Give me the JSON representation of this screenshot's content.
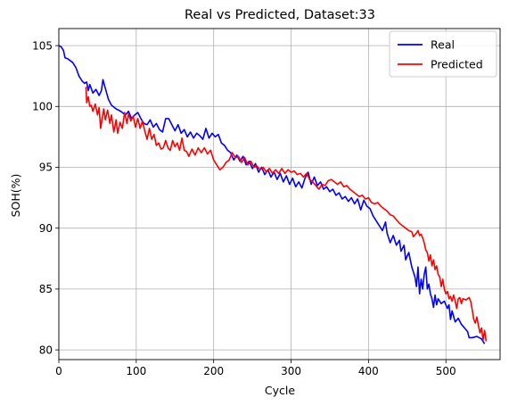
{
  "chart_data": {
    "type": "line",
    "title": "Real vs Predicted, Dataset:33",
    "xlabel": "Cycle",
    "ylabel": "SOH(%)",
    "xlim": [
      0,
      570
    ],
    "ylim": [
      79.2,
      106.4
    ],
    "xticks": [
      0,
      100,
      200,
      300,
      400,
      500
    ],
    "yticks": [
      80,
      85,
      90,
      95,
      100,
      105
    ],
    "grid": true,
    "legend_position": "top-right",
    "series": [
      {
        "name": "Real",
        "color": "#0000ff",
        "points": [
          [
            0,
            105.0
          ],
          [
            3,
            104.9
          ],
          [
            6,
            104.6
          ],
          [
            8,
            104.0
          ],
          [
            12,
            103.9
          ],
          [
            18,
            103.6
          ],
          [
            22,
            103.2
          ],
          [
            26,
            102.5
          ],
          [
            30,
            102.1
          ],
          [
            33,
            101.9
          ],
          [
            36,
            102.0
          ],
          [
            38,
            101.3
          ],
          [
            40,
            101.8
          ],
          [
            44,
            101.1
          ],
          [
            48,
            101.4
          ],
          [
            52,
            100.9
          ],
          [
            55,
            101.3
          ],
          [
            57,
            102.2
          ],
          [
            60,
            101.5
          ],
          [
            64,
            100.6
          ],
          [
            68,
            100.1
          ],
          [
            74,
            99.8
          ],
          [
            80,
            99.6
          ],
          [
            86,
            99.3
          ],
          [
            90,
            99.6
          ],
          [
            94,
            99.0
          ],
          [
            98,
            99.3
          ],
          [
            102,
            99.5
          ],
          [
            106,
            99.0
          ],
          [
            110,
            98.6
          ],
          [
            114,
            98.5
          ],
          [
            118,
            98.9
          ],
          [
            122,
            98.3
          ],
          [
            126,
            98.6
          ],
          [
            130,
            98.1
          ],
          [
            134,
            97.9
          ],
          [
            138,
            99.0
          ],
          [
            142,
            99.0
          ],
          [
            146,
            98.5
          ],
          [
            150,
            98.0
          ],
          [
            154,
            98.5
          ],
          [
            158,
            97.8
          ],
          [
            162,
            98.1
          ],
          [
            166,
            97.5
          ],
          [
            170,
            97.9
          ],
          [
            174,
            97.4
          ],
          [
            178,
            97.8
          ],
          [
            182,
            97.6
          ],
          [
            186,
            97.3
          ],
          [
            190,
            98.2
          ],
          [
            194,
            97.4
          ],
          [
            198,
            97.8
          ],
          [
            202,
            97.5
          ],
          [
            206,
            97.7
          ],
          [
            210,
            97.0
          ],
          [
            214,
            96.8
          ],
          [
            218,
            96.4
          ],
          [
            222,
            96.2
          ],
          [
            226,
            95.6
          ],
          [
            230,
            96.0
          ],
          [
            234,
            95.5
          ],
          [
            238,
            95.9
          ],
          [
            242,
            95.2
          ],
          [
            246,
            95.5
          ],
          [
            250,
            94.9
          ],
          [
            254,
            95.3
          ],
          [
            258,
            94.6
          ],
          [
            262,
            95.0
          ],
          [
            266,
            94.4
          ],
          [
            270,
            94.8
          ],
          [
            274,
            94.2
          ],
          [
            278,
            94.6
          ],
          [
            282,
            94.0
          ],
          [
            286,
            94.5
          ],
          [
            290,
            93.8
          ],
          [
            294,
            94.3
          ],
          [
            298,
            93.6
          ],
          [
            302,
            94.1
          ],
          [
            306,
            93.4
          ],
          [
            310,
            93.8
          ],
          [
            314,
            93.3
          ],
          [
            318,
            94.1
          ],
          [
            322,
            94.6
          ],
          [
            326,
            93.6
          ],
          [
            330,
            94.2
          ],
          [
            334,
            93.5
          ],
          [
            338,
            93.8
          ],
          [
            342,
            93.2
          ],
          [
            346,
            93.4
          ],
          [
            350,
            93.0
          ],
          [
            354,
            93.2
          ],
          [
            358,
            92.7
          ],
          [
            362,
            92.9
          ],
          [
            366,
            92.4
          ],
          [
            370,
            92.6
          ],
          [
            374,
            92.2
          ],
          [
            378,
            92.5
          ],
          [
            382,
            92.0
          ],
          [
            386,
            92.4
          ],
          [
            390,
            91.5
          ],
          [
            394,
            92.3
          ],
          [
            398,
            91.8
          ],
          [
            402,
            91.6
          ],
          [
            406,
            91.0
          ],
          [
            410,
            90.6
          ],
          [
            414,
            90.2
          ],
          [
            418,
            89.8
          ],
          [
            422,
            90.5
          ],
          [
            424,
            89.6
          ],
          [
            428,
            88.8
          ],
          [
            432,
            89.4
          ],
          [
            436,
            88.6
          ],
          [
            440,
            89.0
          ],
          [
            442,
            88.1
          ],
          [
            446,
            88.6
          ],
          [
            448,
            87.4
          ],
          [
            452,
            88.0
          ],
          [
            456,
            86.8
          ],
          [
            460,
            86.0
          ],
          [
            462,
            85.2
          ],
          [
            464,
            86.8
          ],
          [
            466,
            84.6
          ],
          [
            468,
            85.8
          ],
          [
            470,
            85.0
          ],
          [
            472,
            86.2
          ],
          [
            474,
            86.8
          ],
          [
            476,
            85.0
          ],
          [
            478,
            85.4
          ],
          [
            480,
            84.6
          ],
          [
            482,
            84.2
          ],
          [
            484,
            83.5
          ],
          [
            486,
            84.5
          ],
          [
            488,
            83.7
          ],
          [
            490,
            84.2
          ],
          [
            494,
            83.8
          ],
          [
            498,
            84.0
          ],
          [
            502,
            83.4
          ],
          [
            504,
            83.7
          ],
          [
            506,
            82.5
          ],
          [
            508,
            83.2
          ],
          [
            512,
            82.3
          ],
          [
            516,
            82.6
          ],
          [
            520,
            82.1
          ],
          [
            524,
            81.8
          ],
          [
            528,
            81.5
          ],
          [
            530,
            81.0
          ],
          [
            534,
            81.0
          ],
          [
            540,
            81.1
          ],
          [
            546,
            80.9
          ],
          [
            550,
            80.5
          ]
        ]
      },
      {
        "name": "Predicted",
        "color": "#ff0000",
        "points": [
          [
            35,
            101.6
          ],
          [
            36,
            100.3
          ],
          [
            38,
            100.8
          ],
          [
            40,
            100.0
          ],
          [
            42,
            100.1
          ],
          [
            44,
            99.6
          ],
          [
            47,
            100.2
          ],
          [
            50,
            99.3
          ],
          [
            52,
            99.9
          ],
          [
            54,
            98.2
          ],
          [
            56,
            99.0
          ],
          [
            58,
            99.8
          ],
          [
            60,
            98.9
          ],
          [
            63,
            99.7
          ],
          [
            66,
            98.6
          ],
          [
            68,
            99.3
          ],
          [
            71,
            97.9
          ],
          [
            74,
            98.9
          ],
          [
            76,
            97.8
          ],
          [
            79,
            98.7
          ],
          [
            82,
            98.2
          ],
          [
            85,
            99.5
          ],
          [
            88,
            98.6
          ],
          [
            90,
            99.4
          ],
          [
            93,
            98.8
          ],
          [
            96,
            99.2
          ],
          [
            99,
            98.3
          ],
          [
            102,
            99.0
          ],
          [
            105,
            98.2
          ],
          [
            108,
            98.8
          ],
          [
            111,
            98.0
          ],
          [
            114,
            97.3
          ],
          [
            117,
            98.2
          ],
          [
            120,
            97.3
          ],
          [
            123,
            97.7
          ],
          [
            126,
            96.8
          ],
          [
            129,
            97.0
          ],
          [
            132,
            96.5
          ],
          [
            135,
            96.6
          ],
          [
            138,
            97.2
          ],
          [
            141,
            96.6
          ],
          [
            144,
            96.4
          ],
          [
            147,
            97.2
          ],
          [
            150,
            96.7
          ],
          [
            153,
            97.0
          ],
          [
            156,
            96.4
          ],
          [
            159,
            97.4
          ],
          [
            162,
            96.4
          ],
          [
            165,
            96.3
          ],
          [
            168,
            95.9
          ],
          [
            172,
            96.5
          ],
          [
            176,
            96.0
          ],
          [
            180,
            96.6
          ],
          [
            184,
            96.2
          ],
          [
            188,
            96.6
          ],
          [
            192,
            96.1
          ],
          [
            196,
            96.4
          ],
          [
            200,
            95.6
          ],
          [
            204,
            95.2
          ],
          [
            208,
            94.8
          ],
          [
            212,
            95.0
          ],
          [
            216,
            95.4
          ],
          [
            220,
            95.6
          ],
          [
            224,
            96.2
          ],
          [
            228,
            95.8
          ],
          [
            232,
            95.9
          ],
          [
            236,
            95.4
          ],
          [
            240,
            95.8
          ],
          [
            244,
            95.2
          ],
          [
            248,
            95.5
          ],
          [
            252,
            95.0
          ],
          [
            256,
            95.1
          ],
          [
            260,
            94.8
          ],
          [
            264,
            95.0
          ],
          [
            268,
            94.6
          ],
          [
            272,
            94.9
          ],
          [
            276,
            94.5
          ],
          [
            280,
            94.8
          ],
          [
            284,
            94.5
          ],
          [
            288,
            94.9
          ],
          [
            292,
            94.5
          ],
          [
            296,
            94.8
          ],
          [
            300,
            94.6
          ],
          [
            304,
            94.7
          ],
          [
            308,
            94.4
          ],
          [
            312,
            94.5
          ],
          [
            316,
            94.2
          ],
          [
            320,
            94.5
          ],
          [
            324,
            94.0
          ],
          [
            328,
            93.8
          ],
          [
            332,
            93.5
          ],
          [
            336,
            93.2
          ],
          [
            340,
            93.6
          ],
          [
            344,
            93.5
          ],
          [
            348,
            93.9
          ],
          [
            352,
            94.0
          ],
          [
            356,
            93.8
          ],
          [
            360,
            93.6
          ],
          [
            364,
            93.8
          ],
          [
            368,
            93.4
          ],
          [
            372,
            93.5
          ],
          [
            376,
            93.2
          ],
          [
            380,
            93.0
          ],
          [
            384,
            92.8
          ],
          [
            388,
            92.6
          ],
          [
            392,
            92.7
          ],
          [
            396,
            92.4
          ],
          [
            400,
            92.5
          ],
          [
            404,
            92.1
          ],
          [
            408,
            92.0
          ],
          [
            412,
            92.1
          ],
          [
            416,
            91.8
          ],
          [
            420,
            91.6
          ],
          [
            424,
            91.4
          ],
          [
            428,
            91.1
          ],
          [
            432,
            91.0
          ],
          [
            436,
            90.7
          ],
          [
            440,
            90.4
          ],
          [
            444,
            90.2
          ],
          [
            448,
            90.0
          ],
          [
            452,
            89.8
          ],
          [
            456,
            89.7
          ],
          [
            458,
            89.3
          ],
          [
            462,
            89.6
          ],
          [
            464,
            89.8
          ],
          [
            466,
            89.4
          ],
          [
            468,
            89.5
          ],
          [
            470,
            89.2
          ],
          [
            472,
            88.8
          ],
          [
            474,
            88.2
          ],
          [
            476,
            88.0
          ],
          [
            478,
            87.3
          ],
          [
            480,
            87.8
          ],
          [
            482,
            86.9
          ],
          [
            484,
            87.4
          ],
          [
            486,
            86.6
          ],
          [
            488,
            86.9
          ],
          [
            490,
            86.2
          ],
          [
            492,
            86.0
          ],
          [
            494,
            85.2
          ],
          [
            496,
            85.8
          ],
          [
            498,
            85.0
          ],
          [
            500,
            84.6
          ],
          [
            502,
            84.8
          ],
          [
            504,
            84.2
          ],
          [
            506,
            84.4
          ],
          [
            508,
            84.0
          ],
          [
            510,
            84.5
          ],
          [
            512,
            84.0
          ],
          [
            514,
            83.4
          ],
          [
            516,
            84.2
          ],
          [
            518,
            84.3
          ],
          [
            520,
            83.8
          ],
          [
            522,
            84.2
          ],
          [
            526,
            84.1
          ],
          [
            530,
            84.3
          ],
          [
            532,
            84.0
          ],
          [
            534,
            83.3
          ],
          [
            536,
            82.5
          ],
          [
            538,
            82.2
          ],
          [
            540,
            82.7
          ],
          [
            542,
            82.0
          ],
          [
            544,
            81.4
          ],
          [
            546,
            81.8
          ],
          [
            548,
            80.8
          ],
          [
            550,
            81.6
          ],
          [
            552,
            80.7
          ]
        ]
      }
    ]
  }
}
